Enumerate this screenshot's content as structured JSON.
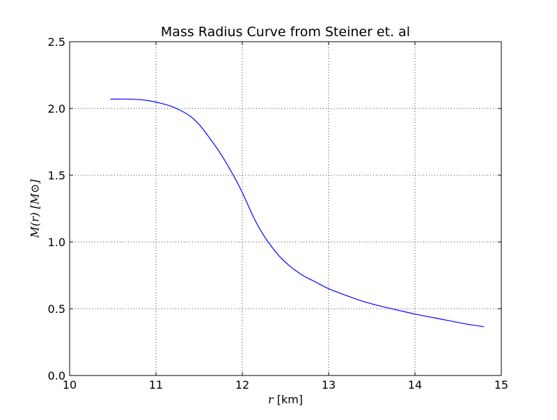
{
  "chart_data": {
    "type": "line",
    "title": "Mass Radius Curve from Steiner et. al",
    "xlabel": "r",
    "xlabel_unit": "[km]",
    "ylabel": "M(r) [M⊙]",
    "xlim": [
      10,
      15
    ],
    "ylim": [
      0,
      2.5
    ],
    "xticks": [
      "10",
      "11",
      "12",
      "13",
      "14",
      "15"
    ],
    "yticks": [
      "0.0",
      "0.5",
      "1.0",
      "1.5",
      "2.0",
      "2.5"
    ],
    "grid": true,
    "series": [
      {
        "color": "#0000ff",
        "x": [
          10.47,
          10.7,
          10.9,
          11.05,
          11.2,
          11.38,
          11.5,
          11.62,
          11.75,
          11.87,
          11.97,
          12.05,
          12.12,
          12.2,
          12.3,
          12.42,
          12.55,
          12.7,
          12.85,
          13.0,
          13.2,
          13.4,
          13.6,
          13.8,
          14.0,
          14.2,
          14.4,
          14.6,
          14.8
        ],
        "y": [
          2.07,
          2.07,
          2.06,
          2.04,
          2.01,
          1.95,
          1.88,
          1.78,
          1.66,
          1.53,
          1.41,
          1.3,
          1.2,
          1.1,
          1.0,
          0.9,
          0.82,
          0.75,
          0.7,
          0.65,
          0.6,
          0.555,
          0.52,
          0.49,
          0.46,
          0.435,
          0.41,
          0.385,
          0.365
        ]
      }
    ]
  }
}
